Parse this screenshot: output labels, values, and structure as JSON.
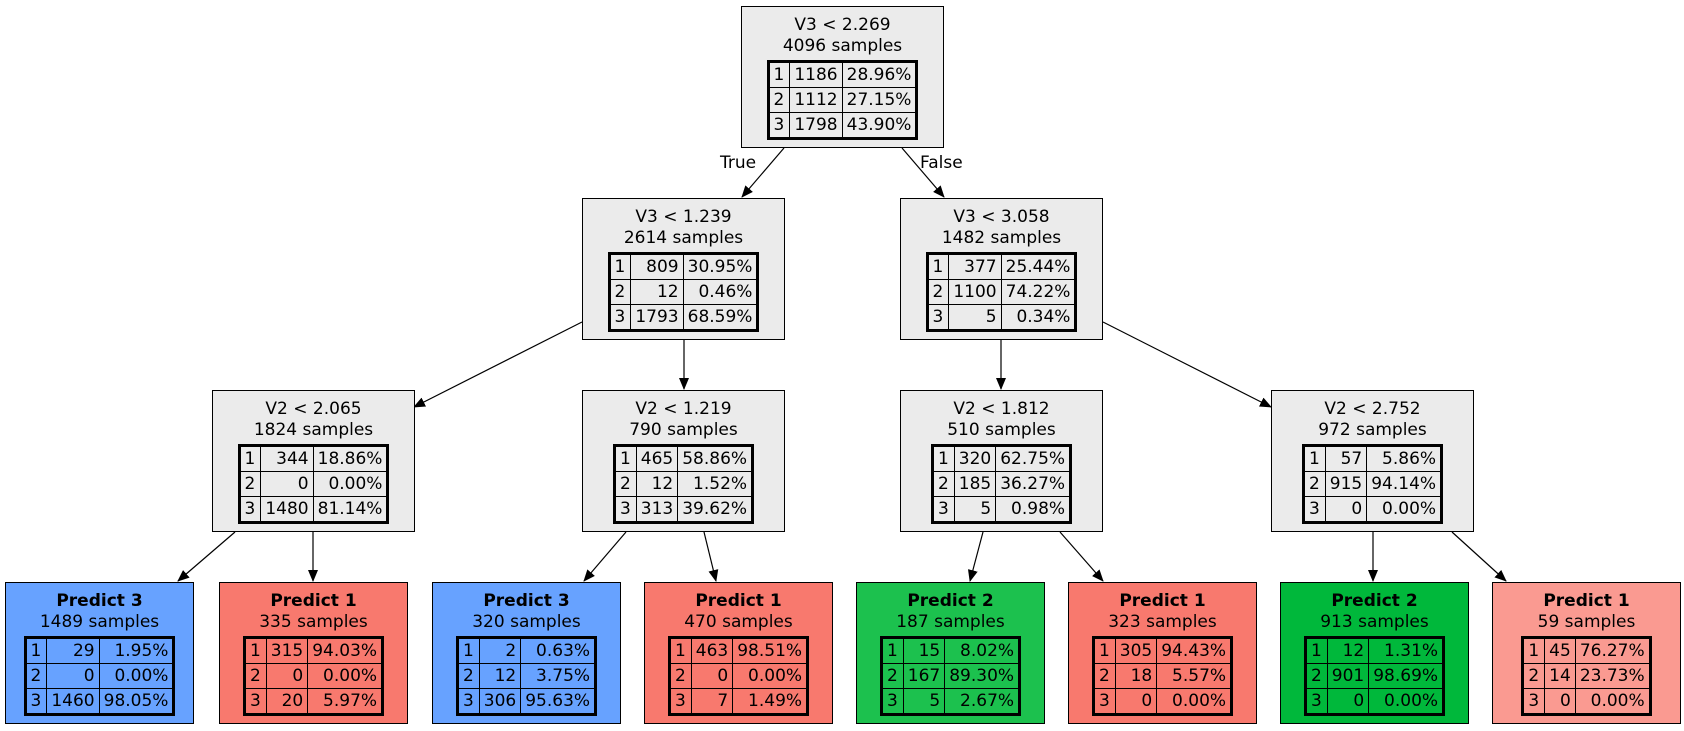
{
  "colors": {
    "internal": "#ebebeb",
    "class_1": "#f8796e",
    "class_1_light": "#fa9a91",
    "class_2": "#1cc14e",
    "class_2_dark": "#00b83b",
    "class_3": "#67a2ff"
  },
  "edge_labels": {
    "true": "True",
    "false": "False"
  },
  "nodes": [
    {
      "id": "n0",
      "title": "V3 < 2.269",
      "samples": "4096 samples",
      "rows": [
        [
          "1",
          "1186",
          "28.96%"
        ],
        [
          "2",
          "1112",
          "27.15%"
        ],
        [
          "3",
          "1798",
          "43.90%"
        ]
      ]
    },
    {
      "id": "n1",
      "title": "V3 < 1.239",
      "samples": "2614 samples",
      "rows": [
        [
          "1",
          "809",
          "30.95%"
        ],
        [
          "2",
          "12",
          "0.46%"
        ],
        [
          "3",
          "1793",
          "68.59%"
        ]
      ]
    },
    {
      "id": "n2",
      "title": "V3 < 3.058",
      "samples": "1482 samples",
      "rows": [
        [
          "1",
          "377",
          "25.44%"
        ],
        [
          "2",
          "1100",
          "74.22%"
        ],
        [
          "3",
          "5",
          "0.34%"
        ]
      ]
    },
    {
      "id": "n3",
      "title": "V2 < 2.065",
      "samples": "1824 samples",
      "rows": [
        [
          "1",
          "344",
          "18.86%"
        ],
        [
          "2",
          "0",
          "0.00%"
        ],
        [
          "3",
          "1480",
          "81.14%"
        ]
      ]
    },
    {
      "id": "n4",
      "title": "V2 < 1.219",
      "samples": "790 samples",
      "rows": [
        [
          "1",
          "465",
          "58.86%"
        ],
        [
          "2",
          "12",
          "1.52%"
        ],
        [
          "3",
          "313",
          "39.62%"
        ]
      ]
    },
    {
      "id": "n5",
      "title": "V2 < 1.812",
      "samples": "510 samples",
      "rows": [
        [
          "1",
          "320",
          "62.75%"
        ],
        [
          "2",
          "185",
          "36.27%"
        ],
        [
          "3",
          "5",
          "0.98%"
        ]
      ]
    },
    {
      "id": "n6",
      "title": "V2 < 2.752",
      "samples": "972 samples",
      "rows": [
        [
          "1",
          "57",
          "5.86%"
        ],
        [
          "2",
          "915",
          "94.14%"
        ],
        [
          "3",
          "0",
          "0.00%"
        ]
      ]
    },
    {
      "id": "n7",
      "title": "Predict 3",
      "samples": "1489 samples",
      "rows": [
        [
          "1",
          "29",
          "1.95%"
        ],
        [
          "2",
          "0",
          "0.00%"
        ],
        [
          "3",
          "1460",
          "98.05%"
        ]
      ]
    },
    {
      "id": "n8",
      "title": "Predict 1",
      "samples": "335 samples",
      "rows": [
        [
          "1",
          "315",
          "94.03%"
        ],
        [
          "2",
          "0",
          "0.00%"
        ],
        [
          "3",
          "20",
          "5.97%"
        ]
      ]
    },
    {
      "id": "n9",
      "title": "Predict 3",
      "samples": "320 samples",
      "rows": [
        [
          "1",
          "2",
          "0.63%"
        ],
        [
          "2",
          "12",
          "3.75%"
        ],
        [
          "3",
          "306",
          "95.63%"
        ]
      ]
    },
    {
      "id": "n10",
      "title": "Predict 1",
      "samples": "470 samples",
      "rows": [
        [
          "1",
          "463",
          "98.51%"
        ],
        [
          "2",
          "0",
          "0.00%"
        ],
        [
          "3",
          "7",
          "1.49%"
        ]
      ]
    },
    {
      "id": "n11",
      "title": "Predict 2",
      "samples": "187 samples",
      "rows": [
        [
          "1",
          "15",
          "8.02%"
        ],
        [
          "2",
          "167",
          "89.30%"
        ],
        [
          "3",
          "5",
          "2.67%"
        ]
      ]
    },
    {
      "id": "n12",
      "title": "Predict 1",
      "samples": "323 samples",
      "rows": [
        [
          "1",
          "305",
          "94.43%"
        ],
        [
          "2",
          "18",
          "5.57%"
        ],
        [
          "3",
          "0",
          "0.00%"
        ]
      ]
    },
    {
      "id": "n13",
      "title": "Predict 2",
      "samples": "913 samples",
      "rows": [
        [
          "1",
          "12",
          "1.31%"
        ],
        [
          "2",
          "901",
          "98.69%"
        ],
        [
          "3",
          "0",
          "0.00%"
        ]
      ]
    },
    {
      "id": "n14",
      "title": "Predict 1",
      "samples": "59 samples",
      "rows": [
        [
          "1",
          "45",
          "76.27%"
        ],
        [
          "2",
          "14",
          "23.73%"
        ],
        [
          "3",
          "0",
          "0.00%"
        ]
      ]
    }
  ]
}
